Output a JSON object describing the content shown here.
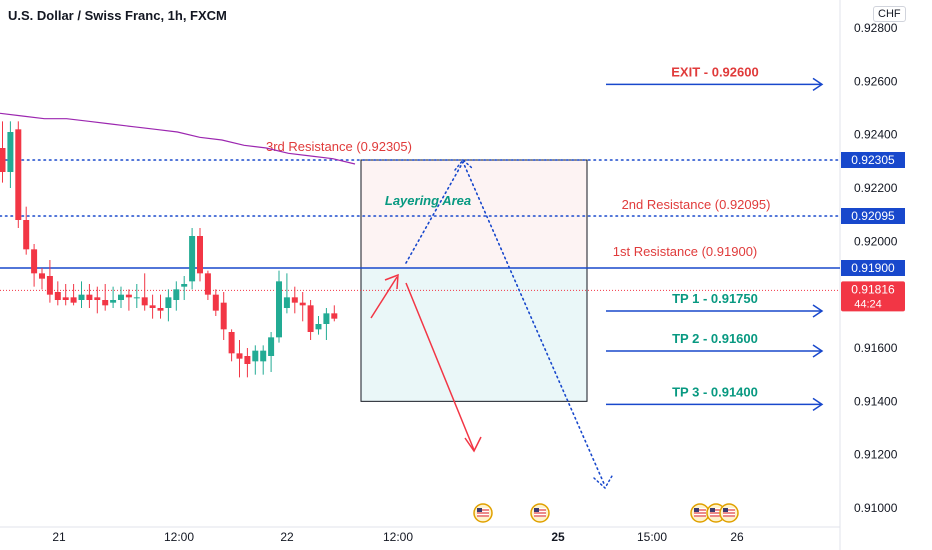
{
  "header": {
    "title": "U.S. Dollar / Swiss Franc, 1h, FXCM",
    "currency": "CHF"
  },
  "chart_data": {
    "type": "candlestick",
    "ylim": [
      0.9096,
      0.9285
    ],
    "y_ticks": [
      "0.92800",
      "0.92600",
      "0.92400",
      "0.92200",
      "0.92000",
      "0.91800",
      "0.91600",
      "0.91400",
      "0.91200",
      "0.91000"
    ],
    "x_ticks": [
      "21",
      "12:00",
      "22",
      "12:00",
      "25",
      "15:00",
      "26"
    ],
    "candles": [
      {
        "o": 0.9235,
        "h": 0.9245,
        "l": 0.9222,
        "c": 0.9226
      },
      {
        "o": 0.9226,
        "h": 0.9245,
        "l": 0.922,
        "c": 0.9241
      },
      {
        "o": 0.9242,
        "h": 0.9245,
        "l": 0.9205,
        "c": 0.9208
      },
      {
        "o": 0.9208,
        "h": 0.9213,
        "l": 0.9195,
        "c": 0.9197
      },
      {
        "o": 0.9197,
        "h": 0.9199,
        "l": 0.9183,
        "c": 0.9188
      },
      {
        "o": 0.9188,
        "h": 0.919,
        "l": 0.9182,
        "c": 0.9186
      },
      {
        "o": 0.9187,
        "h": 0.9193,
        "l": 0.9177,
        "c": 0.918
      },
      {
        "o": 0.9181,
        "h": 0.9185,
        "l": 0.9176,
        "c": 0.9178
      },
      {
        "o": 0.9179,
        "h": 0.9184,
        "l": 0.9176,
        "c": 0.9178
      },
      {
        "o": 0.9179,
        "h": 0.9184,
        "l": 0.9176,
        "c": 0.9177
      },
      {
        "o": 0.9178,
        "h": 0.9185,
        "l": 0.9175,
        "c": 0.918
      },
      {
        "o": 0.918,
        "h": 0.9184,
        "l": 0.9175,
        "c": 0.9178
      },
      {
        "o": 0.9179,
        "h": 0.9183,
        "l": 0.9173,
        "c": 0.9178
      },
      {
        "o": 0.9178,
        "h": 0.9184,
        "l": 0.9174,
        "c": 0.9176
      },
      {
        "o": 0.9177,
        "h": 0.9183,
        "l": 0.9175,
        "c": 0.9178
      },
      {
        "o": 0.9178,
        "h": 0.9183,
        "l": 0.9175,
        "c": 0.918
      },
      {
        "o": 0.918,
        "h": 0.9182,
        "l": 0.9174,
        "c": 0.9179
      },
      {
        "o": 0.9179,
        "h": 0.9184,
        "l": 0.9175,
        "c": 0.9179
      },
      {
        "o": 0.9179,
        "h": 0.9188,
        "l": 0.9174,
        "c": 0.9176
      },
      {
        "o": 0.9176,
        "h": 0.918,
        "l": 0.9171,
        "c": 0.9175
      },
      {
        "o": 0.9175,
        "h": 0.918,
        "l": 0.9171,
        "c": 0.9174
      },
      {
        "o": 0.9175,
        "h": 0.9182,
        "l": 0.917,
        "c": 0.9179
      },
      {
        "o": 0.9178,
        "h": 0.9185,
        "l": 0.9174,
        "c": 0.9182
      },
      {
        "o": 0.9183,
        "h": 0.9187,
        "l": 0.9178,
        "c": 0.9184
      },
      {
        "o": 0.9185,
        "h": 0.9205,
        "l": 0.9182,
        "c": 0.9202
      },
      {
        "o": 0.9202,
        "h": 0.9205,
        "l": 0.9185,
        "c": 0.9188
      },
      {
        "o": 0.9188,
        "h": 0.9189,
        "l": 0.9178,
        "c": 0.918
      },
      {
        "o": 0.918,
        "h": 0.9182,
        "l": 0.9172,
        "c": 0.9174
      },
      {
        "o": 0.9177,
        "h": 0.9181,
        "l": 0.9163,
        "c": 0.9167
      },
      {
        "o": 0.9166,
        "h": 0.9167,
        "l": 0.9155,
        "c": 0.9158
      },
      {
        "o": 0.9158,
        "h": 0.9163,
        "l": 0.9149,
        "c": 0.9156
      },
      {
        "o": 0.9157,
        "h": 0.916,
        "l": 0.9149,
        "c": 0.9154
      },
      {
        "o": 0.9155,
        "h": 0.9161,
        "l": 0.915,
        "c": 0.9159
      },
      {
        "o": 0.9155,
        "h": 0.9161,
        "l": 0.915,
        "c": 0.9159
      },
      {
        "o": 0.9157,
        "h": 0.9166,
        "l": 0.9151,
        "c": 0.9164
      },
      {
        "o": 0.9164,
        "h": 0.9189,
        "l": 0.9162,
        "c": 0.9185
      },
      {
        "o": 0.9175,
        "h": 0.9188,
        "l": 0.9173,
        "c": 0.9179
      },
      {
        "o": 0.9179,
        "h": 0.9183,
        "l": 0.9173,
        "c": 0.9177
      },
      {
        "o": 0.9177,
        "h": 0.9181,
        "l": 0.917,
        "c": 0.9176
      },
      {
        "o": 0.9176,
        "h": 0.9178,
        "l": 0.9163,
        "c": 0.9166
      },
      {
        "o": 0.9167,
        "h": 0.9172,
        "l": 0.9165,
        "c": 0.9169
      },
      {
        "o": 0.9169,
        "h": 0.9175,
        "l": 0.9163,
        "c": 0.9173
      },
      {
        "o": 0.9173,
        "h": 0.9176,
        "l": 0.917,
        "c": 0.9171
      }
    ],
    "moving_average": [
      0.9248,
      0.9247,
      0.9246,
      0.9246,
      0.9245,
      0.9244,
      0.9243,
      0.9242,
      0.9241,
      0.9239,
      0.9238,
      0.9236,
      0.9235,
      0.9233,
      0.9232,
      0.9231,
      0.9229
    ],
    "levels": [
      {
        "label": "3rd Resistance  (0.92305)",
        "value": 0.92305,
        "tag": "0.92305"
      },
      {
        "label": "2nd Resistance  (0.92095)",
        "value": 0.92095,
        "tag": "0.92095"
      },
      {
        "label": "1st Resistance (0.91900)",
        "value": 0.919,
        "tag": "0.91900"
      }
    ],
    "current_price": {
      "value": 0.91816,
      "label": "0.91816",
      "countdown": "44:24"
    },
    "targets": [
      {
        "label": "EXIT - 0.92600",
        "value": 0.926
      },
      {
        "label": "TP 1 - 0.91750",
        "value": 0.9175
      },
      {
        "label": "TP 2 - 0.91600",
        "value": 0.916
      },
      {
        "label": "TP 3 - 0.91400",
        "value": 0.914
      }
    ],
    "zone": {
      "label": "Layering Area",
      "top": 0.92305,
      "mid": 0.919,
      "bottom": 0.914
    },
    "colors": {
      "up": "#22ab94",
      "down": "#f23645",
      "level": "#1848cc",
      "text_red": "#e03b3b",
      "text_teal": "#089981",
      "ma": "#9c27b0"
    }
  }
}
